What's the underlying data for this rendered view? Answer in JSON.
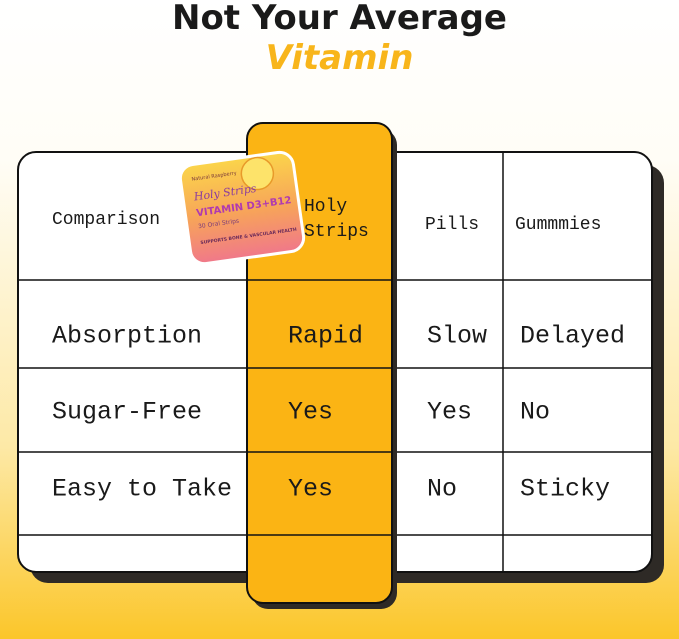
{
  "title": {
    "line1": "Not Your Average",
    "line2": "Vitamin"
  },
  "package": {
    "flavor": "Natural Raspberry",
    "brand": "Holy Strips",
    "product": "VITAMIN D3+B12",
    "count": "30 Oral Strips",
    "claim": "SUPPORTS BONE & VASCULAR HEALTH"
  },
  "table": {
    "header": [
      "Comparison",
      "Holy Strips",
      "Pills",
      "Gummmies"
    ],
    "rows": [
      [
        "Absorption",
        "Rapid",
        "Slow",
        "Delayed"
      ],
      [
        "Sugar-Free",
        "Yes",
        "Yes",
        "No"
      ],
      [
        "Easy to Take",
        "Yes",
        "No",
        "Sticky"
      ]
    ]
  }
}
